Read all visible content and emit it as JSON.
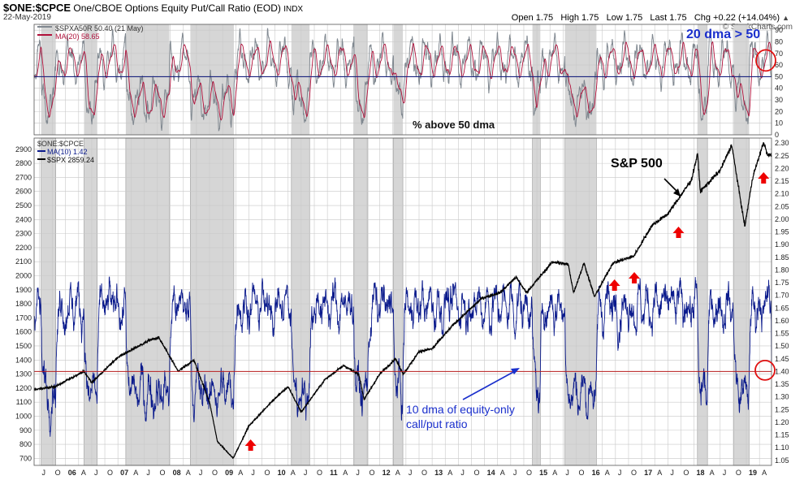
{
  "header": {
    "symbol": "$ONE:$CPCE",
    "description": "One/CBOE Options Equity Put/Call Ratio (EOD)",
    "exchange": "INDX",
    "date": "22-May-2019",
    "ohlc": "Open 1.75   High 1.75   Low 1.75   Last 1.75   Chg +0.22 (+14.04%)",
    "change_arrow": "▲",
    "brand": "© StockCharts.com"
  },
  "colors": {
    "breadth": "#808890",
    "ma20": "#b0103a",
    "ratio": "#0a1a8c",
    "spx": "#000000",
    "shade": "#d6d6d6",
    "ref_blue": "#1a237e",
    "ref_red": "#b71c1c",
    "circle": "#e01010",
    "arrow": "#ee0000",
    "annot_blue": "#1a2fcc"
  },
  "chart_data": [
    {
      "type": "line",
      "panel": "upper",
      "title": "% above 50 dma",
      "legend": [
        "$SPXA50R 50.40 (21 May)",
        "MA(20) 58.65"
      ],
      "series": [
        {
          "name": "$SPXA50R",
          "last": 50.4
        },
        {
          "name": "MA(20)",
          "last": 58.65
        }
      ],
      "ylim": [
        0,
        95
      ],
      "yticks": [
        0,
        10,
        20,
        30,
        40,
        50,
        60,
        70,
        80,
        90
      ],
      "reference_line": 50,
      "annotations": [
        "20 dma > 50",
        "% above 50 dma"
      ]
    },
    {
      "type": "line",
      "panel": "lower",
      "legend": [
        "$ONE:$CPCE",
        "MA(10) 1.42",
        "$SPX 2859.24"
      ],
      "series": [
        {
          "name": "MA(10) of $ONE:$CPCE",
          "axis": "right",
          "last": 1.42
        },
        {
          "name": "$SPX",
          "axis": "left",
          "last": 2859.24
        }
      ],
      "left_ylim": [
        650,
        2980
      ],
      "left_yticks": [
        700,
        800,
        900,
        1000,
        1100,
        1200,
        1300,
        1400,
        1500,
        1600,
        1700,
        1800,
        1900,
        2000,
        2100,
        2200,
        2300,
        2400,
        2500,
        2600,
        2700,
        2800,
        2900
      ],
      "right_ylim": [
        1.03,
        2.32
      ],
      "right_yticks": [
        1.05,
        1.1,
        1.15,
        1.2,
        1.25,
        1.3,
        1.35,
        1.4,
        1.45,
        1.5,
        1.55,
        1.6,
        1.65,
        1.7,
        1.75,
        1.8,
        1.85,
        1.9,
        1.95,
        2.0,
        2.05,
        2.1,
        2.15,
        2.2,
        2.25,
        2.3
      ],
      "reference_line": 1.4,
      "annotations": [
        "S&P 500",
        "10 dma of equity-only",
        "call/put ratio"
      ]
    }
  ],
  "x_axis": {
    "labels": [
      "J",
      "O",
      "06",
      "A",
      "J",
      "O",
      "07",
      "A",
      "J",
      "O",
      "08",
      "A",
      "J",
      "O",
      "09",
      "A",
      "J",
      "O",
      "10",
      "A",
      "J",
      "O",
      "11",
      "A",
      "J",
      "O",
      "12",
      "A",
      "J",
      "O",
      "13",
      "A",
      "J",
      "O",
      "14",
      "A",
      "J",
      "O",
      "15",
      "A",
      "J",
      "O",
      "16",
      "A",
      "J",
      "O",
      "17",
      "A",
      "J",
      "O",
      "18",
      "A",
      "J",
      "O",
      "19",
      "A"
    ],
    "year_labels": [
      "06",
      "07",
      "08",
      "09",
      "10",
      "11",
      "12",
      "13",
      "14",
      "15",
      "16",
      "17",
      "18",
      "19"
    ]
  },
  "shaded_periods": [
    [
      "2005-07-15",
      "2005-10-25"
    ],
    [
      "2006-05-10",
      "2006-08-10"
    ],
    [
      "2007-02-25",
      "2007-12-25"
    ],
    [
      "2008-05-20",
      "2009-03-20"
    ],
    [
      "2010-04-25",
      "2010-08-30"
    ],
    [
      "2011-07-05",
      "2011-10-10"
    ],
    [
      "2012-04-05",
      "2012-06-10"
    ],
    [
      "2014-12-01",
      "2015-01-25"
    ],
    [
      "2015-07-15",
      "2016-02-20"
    ],
    [
      "2018-01-25",
      "2018-04-05"
    ],
    [
      "2018-10-05",
      "2019-01-20"
    ]
  ],
  "arrows": [
    "2009-07-15",
    "2016-06-25",
    "2016-11-10",
    "2017-09-15",
    "2019-05-01"
  ]
}
